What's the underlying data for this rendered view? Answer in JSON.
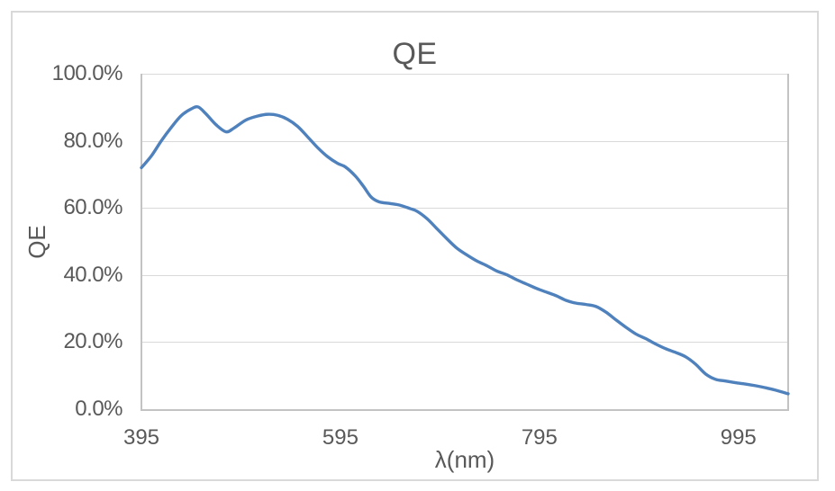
{
  "chart": {
    "title": "QE",
    "x_axis_title": "λ(nm)",
    "y_axis_title": "QE"
  },
  "colors": {
    "series_line": "#4F81BD",
    "text": "#595959",
    "gridline": "#D9D9D9",
    "axis_line": "#C3C3C3",
    "card_border": "#D9D9D9",
    "background": "#FFFFFF"
  },
  "chart_data": {
    "type": "line",
    "title": "QE",
    "xlabel": "λ(nm)",
    "ylabel": "QE",
    "xlim": [
      395,
      1045
    ],
    "ylim": [
      0,
      100
    ],
    "y_unit": "percent",
    "grid": true,
    "legend": false,
    "smooth": true,
    "x_ticks": [
      {
        "value": 395,
        "label": "395"
      },
      {
        "value": 595,
        "label": "595"
      },
      {
        "value": 795,
        "label": "795"
      },
      {
        "value": 995,
        "label": "995"
      }
    ],
    "y_ticks": [
      {
        "value": 100,
        "label": "100.0%"
      },
      {
        "value": 80,
        "label": "80.0%"
      },
      {
        "value": 60,
        "label": "60.0%"
      },
      {
        "value": 40,
        "label": "40.0%"
      },
      {
        "value": 20,
        "label": "20.0%"
      },
      {
        "value": 0,
        "label": "0.0%"
      }
    ],
    "series": [
      {
        "name": "QE",
        "color": "#4F81BD",
        "x": [
          395,
          405,
          415,
          425,
          435,
          445,
          452,
          460,
          470,
          480,
          488,
          500,
          512,
          522,
          532,
          542,
          552,
          562,
          572,
          582,
          592,
          600,
          610,
          618,
          626,
          634,
          645,
          655,
          665,
          672,
          682,
          692,
          702,
          712,
          722,
          732,
          742,
          752,
          762,
          772,
          782,
          792,
          802,
          812,
          822,
          832,
          842,
          852,
          862,
          872,
          882,
          892,
          902,
          912,
          922,
          932,
          942,
          952,
          962,
          972,
          982,
          992,
          1002,
          1012,
          1022,
          1032,
          1045
        ],
        "y_percent": [
          72,
          75.5,
          80,
          84,
          87.5,
          89.5,
          90.1,
          88,
          84.8,
          82.7,
          83.8,
          86.2,
          87.4,
          87.9,
          87.6,
          86.4,
          84.3,
          81.2,
          78,
          75.3,
          73.3,
          72.2,
          69.5,
          66.5,
          63.2,
          61.8,
          61.3,
          60.8,
          59.8,
          59,
          56.8,
          53.8,
          50.8,
          48,
          46,
          44.2,
          42.8,
          41.2,
          40.1,
          38.6,
          37.3,
          36,
          34.9,
          33.8,
          32.4,
          31.6,
          31.2,
          30.6,
          28.9,
          26.6,
          24.4,
          22.4,
          21,
          19.4,
          18,
          16.9,
          15.6,
          13.4,
          10.5,
          8.9,
          8.4,
          7.9,
          7.5,
          7,
          6.4,
          5.7,
          4.6
        ]
      }
    ]
  }
}
